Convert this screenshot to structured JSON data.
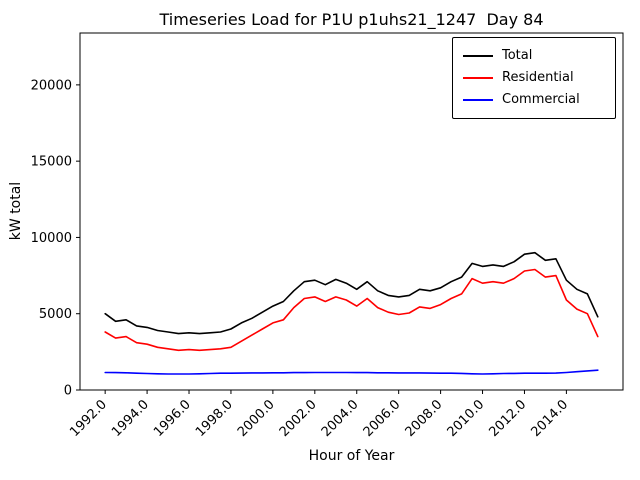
{
  "chart_data": {
    "type": "line",
    "title": "Timeseries Load for P1U p1uhs21_1247  Day 84",
    "xlabel": "Hour of Year",
    "ylabel": "kW total",
    "xlim": [
      1990.8,
      2016.7
    ],
    "ylim": [
      0,
      23400
    ],
    "xticks": [
      1992,
      1994,
      1996,
      1998,
      2000,
      2002,
      2004,
      2006,
      2008,
      2010,
      2012,
      2014
    ],
    "yticks": [
      0,
      5000,
      10000,
      15000,
      20000
    ],
    "grid": false,
    "legend_position": "upper right",
    "x": [
      1992.0,
      1992.5,
      1993.0,
      1993.5,
      1994.0,
      1994.5,
      1995.0,
      1995.5,
      1996.0,
      1996.5,
      1997.0,
      1997.5,
      1998.0,
      1998.5,
      1999.0,
      1999.5,
      2000.0,
      2000.5,
      2001.0,
      2001.5,
      2002.0,
      2002.5,
      2003.0,
      2003.5,
      2004.0,
      2004.5,
      2005.0,
      2005.5,
      2006.0,
      2006.5,
      2007.0,
      2007.5,
      2008.0,
      2008.5,
      2009.0,
      2009.5,
      2010.0,
      2010.5,
      2011.0,
      2011.5,
      2012.0,
      2012.5,
      2013.0,
      2013.5,
      2014.0,
      2014.5,
      2015.0,
      2015.5
    ],
    "series": [
      {
        "name": "Total",
        "color": "#000000",
        "values": [
          5000,
          4500,
          4600,
          4200,
          4100,
          3900,
          3800,
          3700,
          3750,
          3700,
          3750,
          3800,
          4000,
          4400,
          4700,
          5100,
          5500,
          5800,
          6500,
          7100,
          7200,
          6900,
          7250,
          7000,
          6600,
          7100,
          6500,
          6200,
          6100,
          6200,
          6600,
          6500,
          6700,
          7100,
          7400,
          8300,
          8100,
          8200,
          8100,
          8400,
          8900,
          9000,
          8500,
          8600,
          7200,
          6600,
          6300,
          4800
        ]
      },
      {
        "name": "Residential",
        "color": "#ff0000",
        "values": [
          3800,
          3400,
          3500,
          3100,
          3000,
          2800,
          2700,
          2600,
          2650,
          2600,
          2650,
          2700,
          2800,
          3200,
          3600,
          4000,
          4400,
          4600,
          5400,
          6000,
          6100,
          5800,
          6100,
          5900,
          5500,
          6000,
          5400,
          5100,
          4950,
          5050,
          5450,
          5350,
          5600,
          6000,
          6300,
          7300,
          7000,
          7100,
          7000,
          7300,
          7800,
          7900,
          7400,
          7500,
          5900,
          5300,
          5000,
          3500
        ]
      },
      {
        "name": "Commercial",
        "color": "#0000ff",
        "values": [
          1150,
          1140,
          1130,
          1100,
          1080,
          1060,
          1050,
          1050,
          1050,
          1060,
          1080,
          1100,
          1100,
          1110,
          1120,
          1120,
          1130,
          1130,
          1140,
          1140,
          1150,
          1150,
          1150,
          1150,
          1140,
          1140,
          1130,
          1130,
          1120,
          1120,
          1120,
          1110,
          1100,
          1100,
          1090,
          1060,
          1050,
          1060,
          1080,
          1090,
          1100,
          1100,
          1100,
          1110,
          1150,
          1200,
          1250,
          1300
        ]
      }
    ]
  }
}
